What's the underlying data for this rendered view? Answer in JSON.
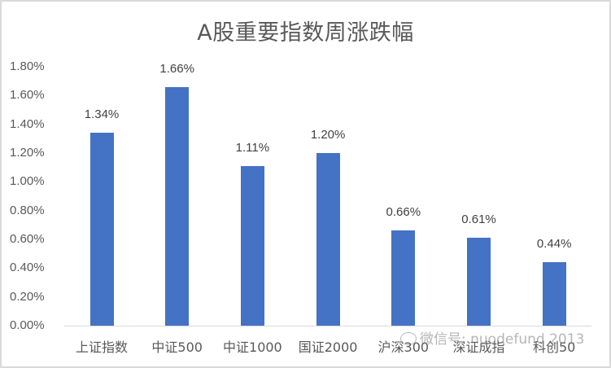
{
  "chart_data": {
    "type": "bar",
    "title": "A股重要指数周涨跌幅",
    "categories": [
      "上证指数",
      "中证500",
      "中证1000",
      "国证2000",
      "沪深300",
      "深证成指",
      "科创50"
    ],
    "values": [
      1.34,
      1.66,
      1.11,
      1.2,
      0.66,
      0.61,
      0.44
    ],
    "value_labels": [
      "1.34%",
      "1.66%",
      "1.11%",
      "1.20%",
      "0.66%",
      "0.61%",
      "0.44%"
    ],
    "unit": "%",
    "xlabel": "",
    "ylabel": "",
    "ylim": [
      0,
      1.8
    ],
    "yticks": [
      "0.00%",
      "0.20%",
      "0.40%",
      "0.60%",
      "0.80%",
      "1.00%",
      "1.20%",
      "1.40%",
      "1.60%",
      "1.80%"
    ],
    "grid": false,
    "legend": null,
    "bar_color": "#4472c4"
  },
  "watermark": {
    "icon": "wechat-icon",
    "text": "微信号: nuodefund 2013"
  }
}
